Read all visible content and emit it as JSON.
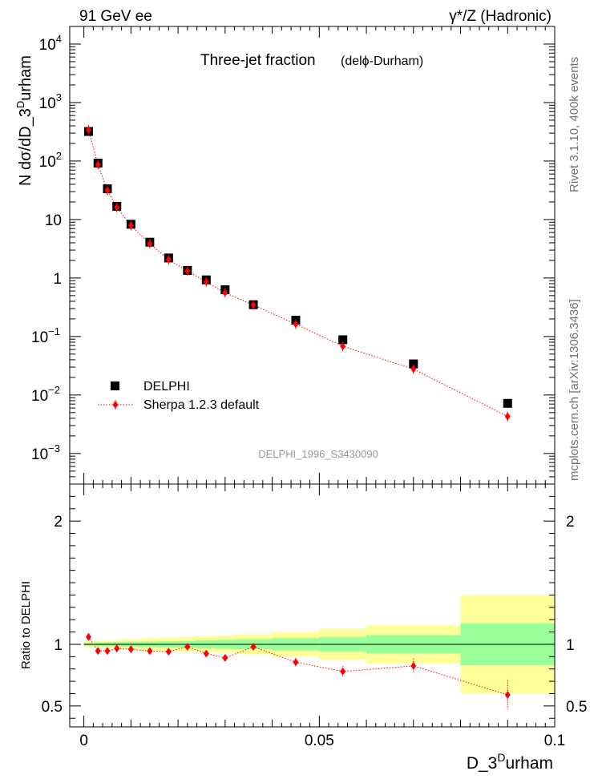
{
  "header": {
    "left": "91 GeV ee",
    "right": "γ*/Z (Hadronic)"
  },
  "side_labels": {
    "rivet": "Rivet 3.1.10,  400k events",
    "mcplots": "mcplots.cern.ch [arXiv:1306.3436]"
  },
  "watermark": "DELPHI_1996_S3430090",
  "chart_data": [
    {
      "type": "scatter",
      "title": "Three-jet fraction",
      "subtitle": "(delϕ-Durham)",
      "xlabel": "D_3^Durham",
      "ylabel": "N dσ/dD_3^Durham",
      "yscale": "log",
      "xlim": [
        -0.003,
        0.1
      ],
      "ylim": [
        0.0003,
        20000
      ],
      "x_ticks": [
        "0",
        "0.05",
        "0.1"
      ],
      "y_ticks": [
        {
          "mant": "10",
          "exp": "4",
          "v": 10000
        },
        {
          "mant": "10",
          "exp": "3",
          "v": 1000
        },
        {
          "mant": "10",
          "exp": "2",
          "v": 100
        },
        {
          "mant": "10",
          "exp": "",
          "v": 10
        },
        {
          "mant": "1",
          "exp": "",
          "v": 1
        },
        {
          "mant": "10",
          "exp": "−1",
          "v": 0.1
        },
        {
          "mant": "10",
          "exp": "−2",
          "v": 0.01
        },
        {
          "mant": "10",
          "exp": "−3",
          "v": 0.001
        }
      ],
      "legend_position": "bottom-left",
      "series": [
        {
          "name": "DELPHI",
          "color": "#000000",
          "marker": "square",
          "x": [
            0.001,
            0.003,
            0.005,
            0.007,
            0.01,
            0.014,
            0.018,
            0.022,
            0.026,
            0.03,
            0.036,
            0.045,
            0.055,
            0.07,
            0.09
          ],
          "y": [
            320,
            92,
            33.5,
            16.8,
            8.3,
            4.1,
            2.2,
            1.35,
            0.93,
            0.63,
            0.35,
            0.19,
            0.088,
            0.034,
            0.0072
          ]
        },
        {
          "name": "Sherpa 1.2.3 default",
          "color": "#ff0000",
          "marker": "diamond",
          "line": "dotted",
          "x": [
            0.001,
            0.003,
            0.005,
            0.007,
            0.01,
            0.014,
            0.018,
            0.022,
            0.026,
            0.03,
            0.036,
            0.045,
            0.055,
            0.07,
            0.09
          ],
          "y": [
            340,
            87,
            31.5,
            16.2,
            7.9,
            3.85,
            2.07,
            1.32,
            0.86,
            0.56,
            0.345,
            0.163,
            0.068,
            0.0278,
            0.0043
          ]
        }
      ]
    },
    {
      "type": "scatter",
      "ylabel": "Ratio to DELPHI",
      "xlim": [
        -0.003,
        0.1
      ],
      "ylim": [
        0.33,
        2.3
      ],
      "y_ticks": [
        "0.5",
        "1",
        "2"
      ],
      "reference_line": 1,
      "bands": {
        "bins": [
          [
            0,
            0.002
          ],
          [
            0.002,
            0.004
          ],
          [
            0.004,
            0.006
          ],
          [
            0.006,
            0.008
          ],
          [
            0.008,
            0.012
          ],
          [
            0.012,
            0.016
          ],
          [
            0.016,
            0.02
          ],
          [
            0.02,
            0.024
          ],
          [
            0.024,
            0.028
          ],
          [
            0.028,
            0.032
          ],
          [
            0.032,
            0.04
          ],
          [
            0.04,
            0.05
          ],
          [
            0.05,
            0.06
          ],
          [
            0.06,
            0.08
          ],
          [
            0.08,
            0.1
          ]
        ],
        "inner_halfwidth": [
          0.012,
          0.014,
          0.016,
          0.018,
          0.02,
          0.022,
          0.025,
          0.028,
          0.032,
          0.036,
          0.04,
          0.05,
          0.06,
          0.075,
          0.17
        ],
        "outer_halfwidth": [
          0.025,
          0.03,
          0.03,
          0.035,
          0.04,
          0.05,
          0.055,
          0.06,
          0.065,
          0.07,
          0.08,
          0.1,
          0.125,
          0.155,
          0.4
        ],
        "inner_color": "#99ff99",
        "outer_color": "#ffff99"
      },
      "series": [
        {
          "name": "Sherpa 1.2.3 default",
          "color": "#ff0000",
          "x": [
            0.001,
            0.003,
            0.005,
            0.007,
            0.01,
            0.014,
            0.018,
            0.022,
            0.026,
            0.03,
            0.036,
            0.045,
            0.055,
            0.07,
            0.09
          ],
          "y": [
            1.06,
            0.946,
            0.946,
            0.966,
            0.96,
            0.945,
            0.94,
            0.98,
            0.925,
            0.89,
            0.98,
            0.855,
            0.78,
            0.825,
            0.59
          ],
          "err": [
            0.015,
            0.015,
            0.015,
            0.015,
            0.015,
            0.015,
            0.015,
            0.02,
            0.02,
            0.025,
            0.025,
            0.035,
            0.045,
            0.06,
            0.12
          ]
        }
      ]
    }
  ]
}
